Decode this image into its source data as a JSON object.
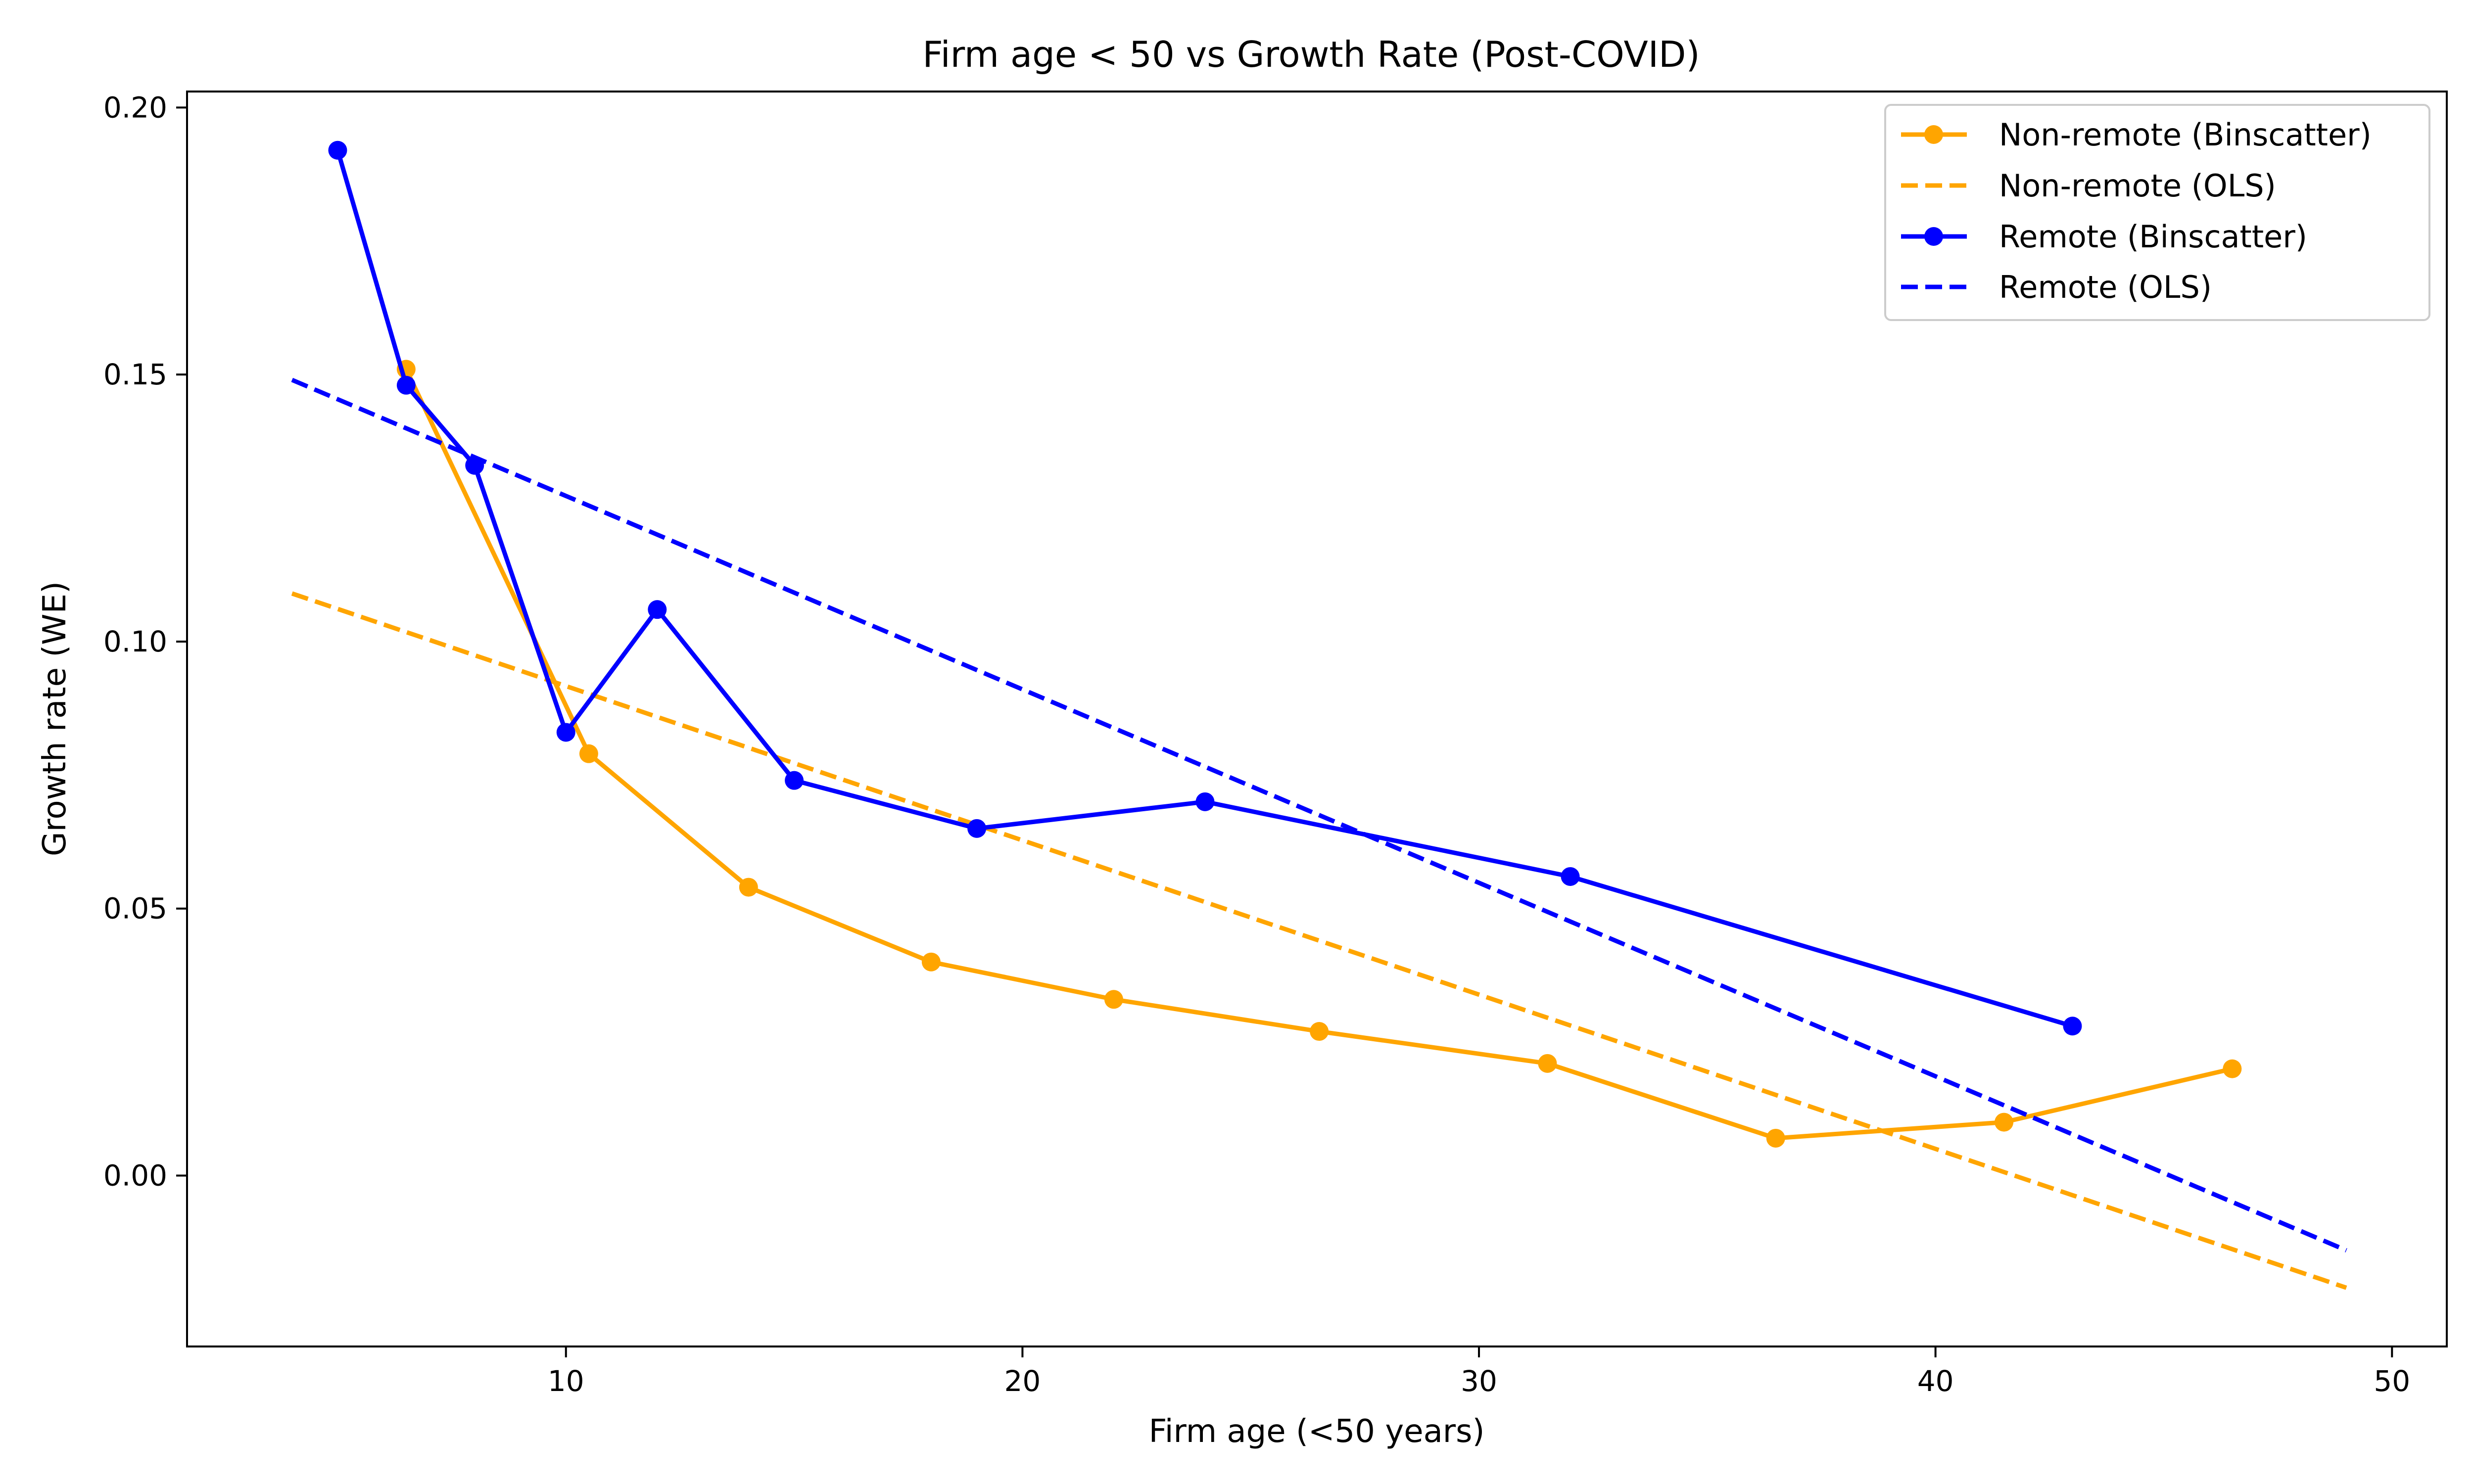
{
  "chart_data": {
    "type": "line",
    "title": "Firm age < 50 vs Growth Rate (Post-COVID)",
    "xlabel": "Firm age (<50 years)",
    "ylabel": "Growth rate (WE)",
    "xlim": [
      1.7,
      51.2
    ],
    "ylim": [
      -0.032,
      0.203
    ],
    "xticks": [
      10,
      20,
      30,
      40,
      50
    ],
    "xtick_labels": [
      "10",
      "20",
      "30",
      "40",
      "50"
    ],
    "yticks": [
      0.0,
      0.05,
      0.1,
      0.15,
      0.2
    ],
    "ytick_labels": [
      "0.00",
      "0.05",
      "0.10",
      "0.15",
      "0.20"
    ],
    "grid": false,
    "legend_position": "top-right",
    "series": [
      {
        "name": "Non-remote (Binscatter)",
        "style": "line-markers",
        "color": "#FFA500",
        "x": [
          6.5,
          10.5,
          14,
          18,
          22,
          26.5,
          31.5,
          36.5,
          41.5,
          46.5
        ],
        "y": [
          0.151,
          0.079,
          0.054,
          0.04,
          0.033,
          0.027,
          0.021,
          0.007,
          0.01,
          0.02
        ]
      },
      {
        "name": "Non-remote (OLS)",
        "style": "dashed",
        "color": "#FFA500",
        "x": [
          4,
          49
        ],
        "y": [
          0.109,
          -0.021
        ]
      },
      {
        "name": "Remote (Binscatter)",
        "style": "line-markers",
        "color": "#0000FF",
        "x": [
          5,
          6.5,
          8,
          10,
          12,
          15,
          19,
          24,
          32,
          43
        ],
        "y": [
          0.192,
          0.148,
          0.133,
          0.083,
          0.106,
          0.074,
          0.065,
          0.07,
          0.056,
          0.028
        ]
      },
      {
        "name": "Remote (OLS)",
        "style": "dashed",
        "color": "#0000FF",
        "x": [
          4,
          49
        ],
        "y": [
          0.149,
          -0.014
        ]
      }
    ]
  }
}
